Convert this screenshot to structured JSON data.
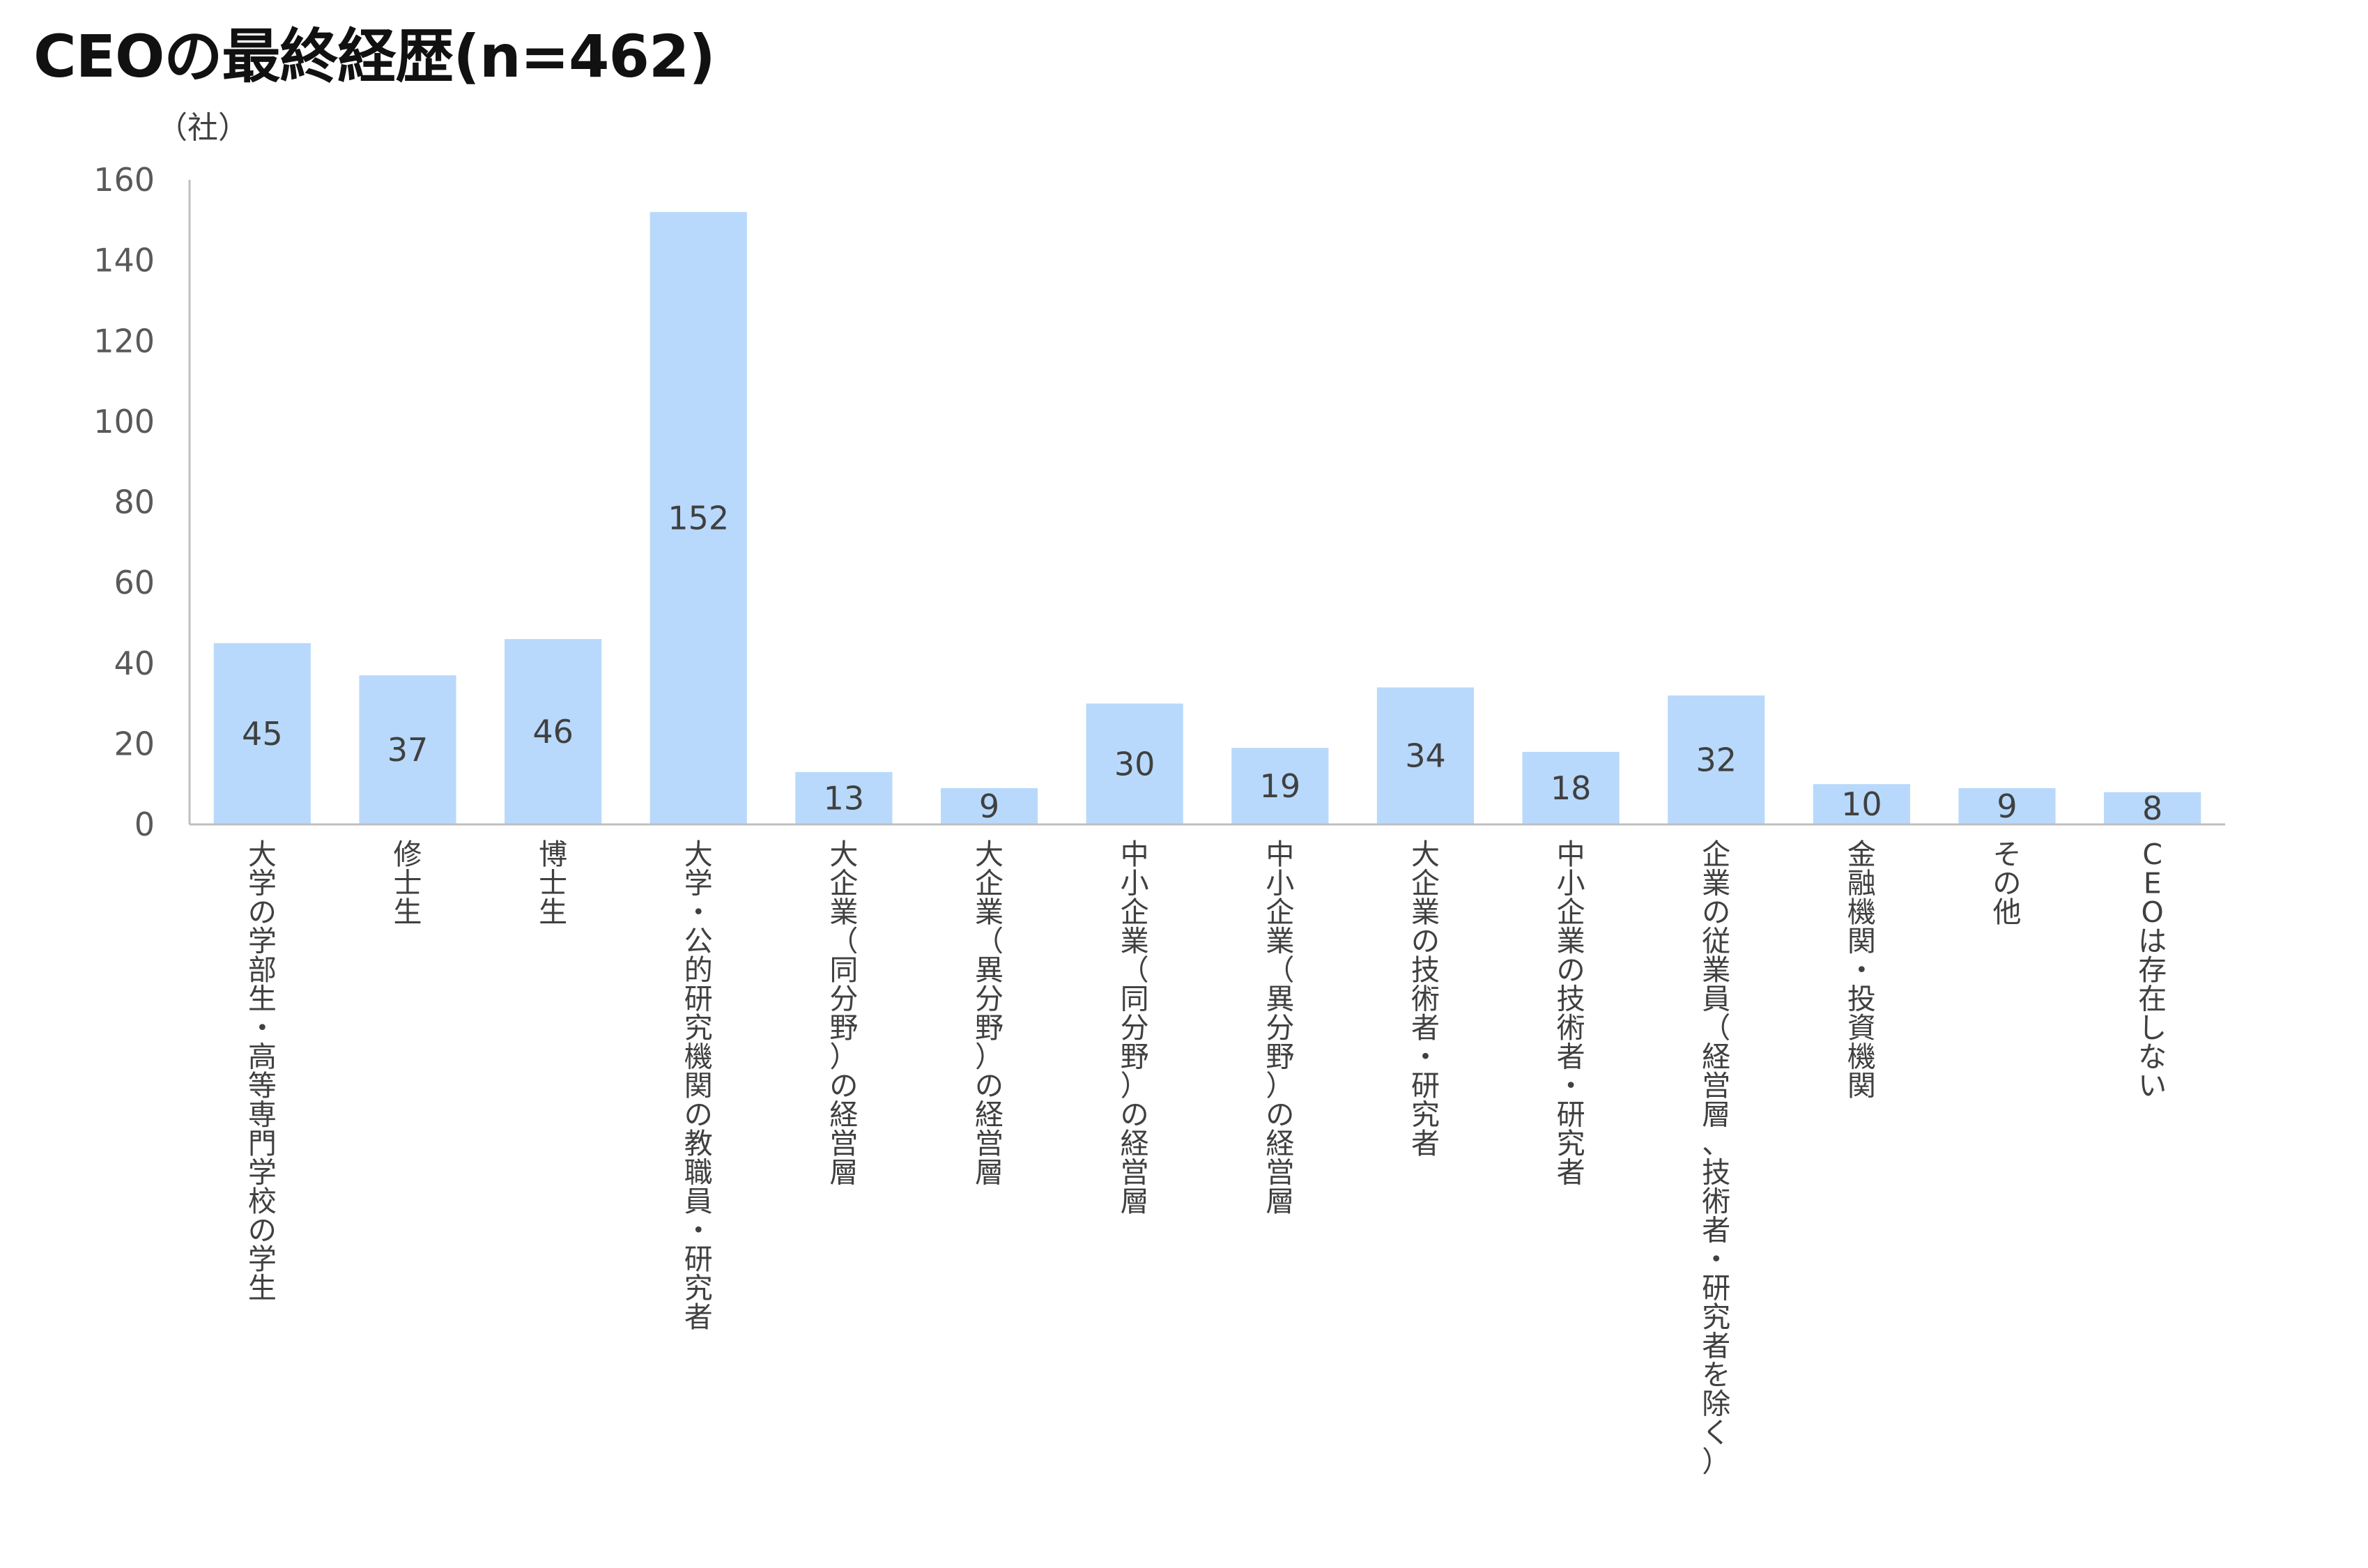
{
  "chart_data": {
    "type": "bar",
    "title": "CEOの最終経歴(n=462)",
    "ylabel": "（社）",
    "xlabel": "",
    "ylim": [
      0,
      160
    ],
    "yticks": [
      0,
      20,
      40,
      60,
      80,
      100,
      120,
      140,
      160
    ],
    "grid": false,
    "legend": "none",
    "bar_color": "#b8d9fb",
    "categories": [
      "大学の学部生・高等専門学校の学生",
      "修士生",
      "博士生",
      "大学・公的研究機関の教職員・研究者",
      "大企業（同分野）の経営層",
      "大企業（異分野）の経営層",
      "中小企業（同分野）の経営層",
      "中小企業（異分野）の経営層",
      "大企業の技術者・研究者",
      "中小企業の技術者・研究者",
      "企業の従業員（経営層、技術者・研究者を除く）",
      "金融機関・投資機関",
      "その他",
      "CEOは存在しない"
    ],
    "values": [
      45,
      37,
      46,
      152,
      13,
      9,
      30,
      19,
      34,
      18,
      32,
      10,
      9,
      8
    ]
  }
}
